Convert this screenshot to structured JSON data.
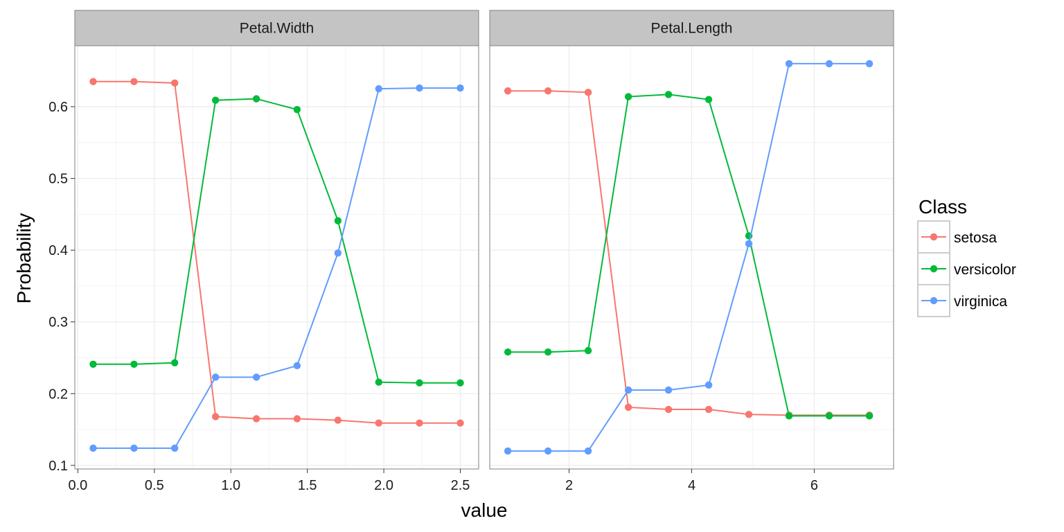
{
  "chart_data": {
    "type": "line",
    "xlabel": "value",
    "ylabel": "Probability",
    "legend": {
      "title": "Class",
      "position": "right",
      "entries": [
        "setosa",
        "versicolor",
        "virginica"
      ]
    },
    "colors": {
      "setosa": "#F8766D",
      "versicolor": "#00BA38",
      "virginica": "#619CFF",
      "strip_background": "#C4C4C4",
      "gridline": "#EBEBEB",
      "panel_border": "#7F7F7F"
    },
    "y_axis": {
      "range": [
        0.095,
        0.685
      ],
      "ticks": [
        0.1,
        0.2,
        0.3,
        0.4,
        0.5,
        0.6
      ],
      "tick_labels": [
        "0.1",
        "0.2",
        "0.3",
        "0.4",
        "0.5",
        "0.6"
      ]
    },
    "grid": true,
    "panels": [
      {
        "strip_label": "Petal.Width",
        "x_range": [
          -0.02,
          2.62
        ],
        "x_ticks": [
          0.0,
          0.5,
          1.0,
          1.5,
          2.0,
          2.5
        ],
        "x_tick_labels": [
          "0.0",
          "0.5",
          "1.0",
          "1.5",
          "2.0",
          "2.5"
        ],
        "x": [
          0.1,
          0.367,
          0.633,
          0.9,
          1.167,
          1.433,
          1.7,
          1.967,
          2.233,
          2.5
        ],
        "series": [
          {
            "name": "setosa",
            "values": [
              0.635,
              0.635,
              0.633,
              0.168,
              0.165,
              0.165,
              0.163,
              0.159,
              0.159,
              0.159
            ]
          },
          {
            "name": "versicolor",
            "values": [
              0.241,
              0.241,
              0.243,
              0.609,
              0.611,
              0.596,
              0.441,
              0.216,
              0.215,
              0.215
            ]
          },
          {
            "name": "virginica",
            "values": [
              0.124,
              0.124,
              0.124,
              0.223,
              0.223,
              0.239,
              0.396,
              0.625,
              0.626,
              0.626
            ]
          }
        ]
      },
      {
        "strip_label": "Petal.Length",
        "x_range": [
          0.705,
          7.295
        ],
        "x_ticks": [
          2,
          4,
          6
        ],
        "x_tick_labels": [
          "2",
          "4",
          "6"
        ],
        "x": [
          1.0,
          1.656,
          2.311,
          2.967,
          3.622,
          4.278,
          4.933,
          5.589,
          6.244,
          6.9
        ],
        "series": [
          {
            "name": "setosa",
            "values": [
              0.622,
              0.622,
              0.62,
              0.181,
              0.178,
              0.178,
              0.171,
              0.17,
              0.17,
              0.17
            ]
          },
          {
            "name": "versicolor",
            "values": [
              0.258,
              0.258,
              0.26,
              0.614,
              0.617,
              0.61,
              0.42,
              0.169,
              0.169,
              0.169
            ]
          },
          {
            "name": "virginica",
            "values": [
              0.12,
              0.12,
              0.12,
              0.205,
              0.205,
              0.212,
              0.409,
              0.66,
              0.66,
              0.66
            ]
          }
        ]
      }
    ]
  }
}
